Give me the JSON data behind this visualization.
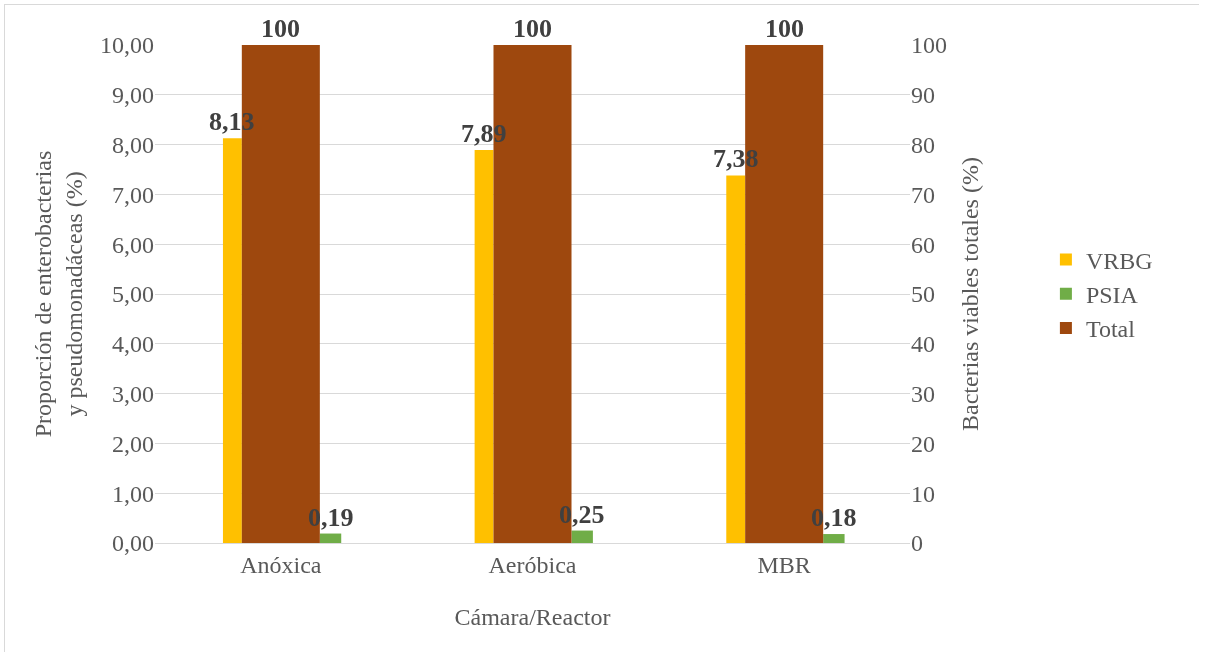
{
  "chart_data": {
    "type": "bar",
    "xlabel": "Cámara/Reactor",
    "ylabel": "Proporción de enterobacterias y pseudomonadáceas (%)",
    "y2label": "Bacterias viables totales (%)",
    "categories": [
      "Anóxica",
      "Aeróbica",
      "MBR"
    ],
    "series": [
      {
        "name": "VRBG",
        "color": "#ffc000",
        "values": [
          8.13,
          7.89,
          7.38
        ],
        "value_labels": [
          "8,13",
          "7,89",
          "7,38"
        ]
      },
      {
        "name": "PSIA",
        "color": "#70ad47",
        "values": [
          0.19,
          0.25,
          0.18
        ],
        "value_labels": [
          "0,19",
          "0,25",
          "0,18"
        ]
      },
      {
        "name": "Total",
        "color": "#9e480e",
        "axis": "y2",
        "values": [
          100,
          100,
          100
        ],
        "value_labels": [
          "100",
          "100",
          "100"
        ]
      }
    ],
    "ylim": [
      0,
      10
    ],
    "yticks": [
      {
        "value": 0,
        "label": "0,00"
      },
      {
        "value": 1,
        "label": "1,00"
      },
      {
        "value": 2,
        "label": "2,00"
      },
      {
        "value": 3,
        "label": "3,00"
      },
      {
        "value": 4,
        "label": "4,00"
      },
      {
        "value": 5,
        "label": "5,00"
      },
      {
        "value": 6,
        "label": "6,00"
      },
      {
        "value": 7,
        "label": "7,00"
      },
      {
        "value": 8,
        "label": "8,00"
      },
      {
        "value": 9,
        "label": "9,00"
      },
      {
        "value": 10,
        "label": "10,00"
      }
    ],
    "y2lim": [
      0,
      100
    ],
    "y2ticks": [
      0,
      10,
      20,
      30,
      40,
      50,
      60,
      70,
      80,
      90,
      100
    ],
    "grid": "y",
    "legend": "right"
  }
}
